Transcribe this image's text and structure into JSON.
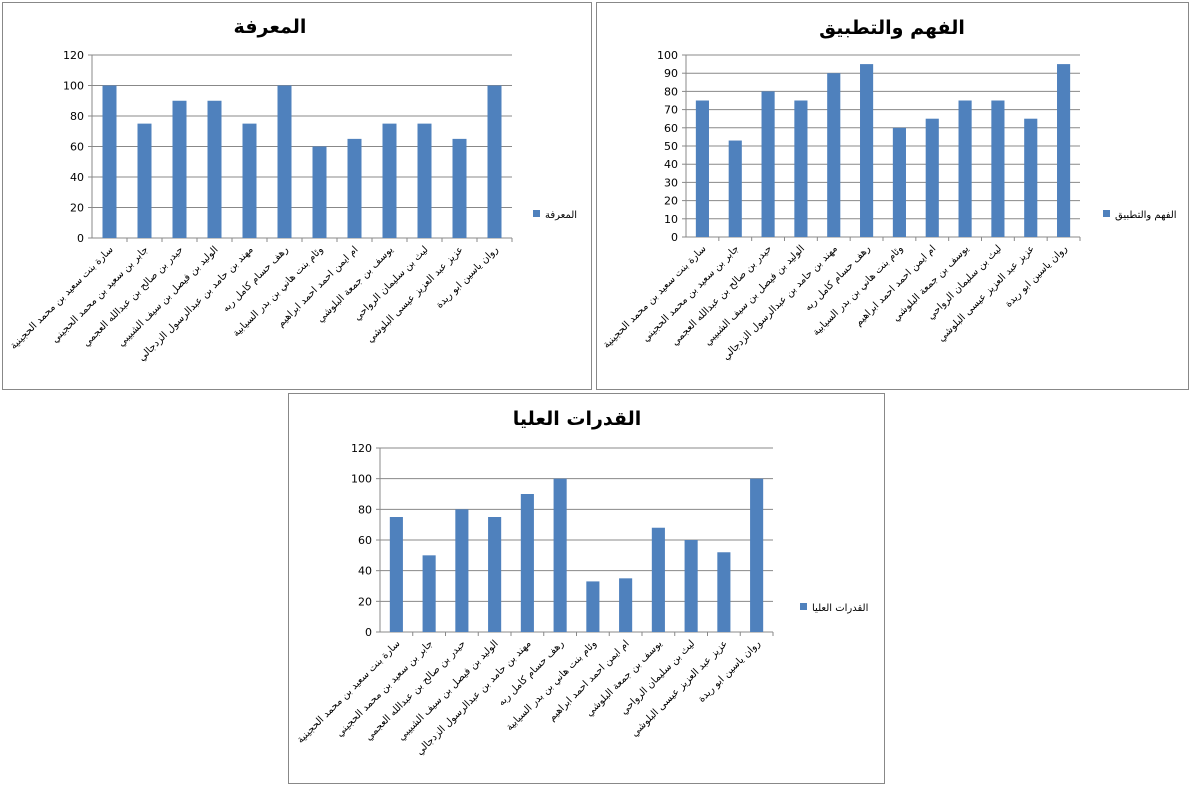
{
  "chart_data": [
    {
      "type": "bar",
      "title": "المعرفة",
      "categories": [
        "سارة بنت سعيد بن محمد الحجينية",
        "جابر بن سعيد بن محمد الحجيني",
        "حيدر بن صالح بن عبدالله العجمي",
        "الوليد بن فيصل بن سيف الشبيبي",
        "مهند بن حامد بن عبدالرسول الزدجالي",
        "رهف حسام كامل ربه",
        "وئام بنت هاني بن بدر السيابية",
        "ام ايمن احمد احمد ابراهيم",
        "يوسف بن جمعة البلوشي",
        "ليث بن سليمان الرواحي",
        "عزيز عبد العزيز عيسى البلوشي",
        "روان ياسين ابو ريدة"
      ],
      "series": [
        {
          "name": "المعرفة",
          "color": "#4f81bd",
          "values": [
            100,
            75,
            90,
            90,
            75,
            100,
            60,
            65,
            75,
            75,
            65,
            100
          ]
        }
      ],
      "ylim": [
        0,
        120
      ],
      "yticks": [
        0,
        20,
        40,
        60,
        80,
        100,
        120
      ],
      "legend": "right"
    },
    {
      "type": "bar",
      "title": "الفهم والتطبيق",
      "categories": [
        "سارة بنت سعيد بن محمد الحجينية",
        "جابر بن سعيد بن محمد الحجيني",
        "حيدر بن صالح بن عبدالله العجمي",
        "الوليد بن فيصل بن سيف الشبيبي",
        "مهند بن حامد بن عبدالرسول الزدجالي",
        "رهف حسام كامل ربه",
        "وئام بنت هاني بن بدر السيابية",
        "ام ايمن احمد احمد ابراهيم",
        "يوسف بن جمعة البلوشي",
        "ليث بن سليمان الرواحي",
        "عزيز عبد العزيز عيسى البلوشي",
        "روان ياسين ابو ريدة"
      ],
      "series": [
        {
          "name": "الفهم والتطبيق",
          "color": "#4f81bd",
          "values": [
            75,
            53,
            80,
            75,
            90,
            95,
            60,
            65,
            75,
            75,
            65,
            95
          ]
        }
      ],
      "ylim": [
        0,
        100
      ],
      "yticks": [
        0,
        10,
        20,
        30,
        40,
        50,
        60,
        70,
        80,
        90,
        100
      ],
      "legend": "right"
    },
    {
      "type": "bar",
      "title": "القدرات العليا",
      "categories": [
        "سارة بنت سعيد بن محمد الحجينية",
        "جابر بن سعيد بن محمد الحجيني",
        "حيدر بن صالح بن عبدالله العجمي",
        "الوليد بن فيصل بن سيف الشبيبي",
        "مهند بن حامد بن عبدالرسول الزدجالي",
        "رهف حسام كامل ربه",
        "وئام بنت هاني بن بدر السيابية",
        "ام ايمن احمد احمد ابراهيم",
        "يوسف بن جمعة البلوشي",
        "ليث بن سليمان الرواحي",
        "عزيز عبد العزيز عيسى البلوشي",
        "روان ياسين ابو ريدة"
      ],
      "series": [
        {
          "name": "القدرات العليا",
          "color": "#4f81bd",
          "values": [
            75,
            50,
            80,
            75,
            90,
            100,
            33,
            35,
            68,
            60,
            52,
            100
          ]
        }
      ],
      "ylim": [
        0,
        120
      ],
      "yticks": [
        0,
        20,
        40,
        60,
        80,
        100,
        120
      ],
      "legend": "right"
    }
  ]
}
